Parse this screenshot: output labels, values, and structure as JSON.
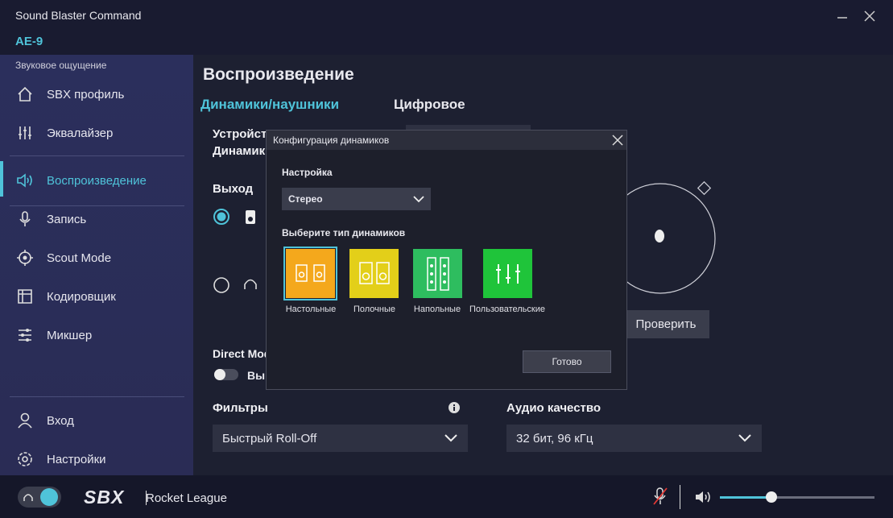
{
  "header": {
    "app_title": "Sound Blaster Command",
    "device": "AE-9"
  },
  "sidebar": {
    "section": "Звуковое ощущение",
    "items": [
      "SBX профиль",
      "Эквалайзер",
      "Воспроизведение",
      "Запись",
      "Scout Mode",
      "Кодировщик",
      "Микшер"
    ],
    "bottom_items": [
      "Вход",
      "Настройки"
    ]
  },
  "main": {
    "title": "Воспроизведение",
    "tabs": [
      "Динамики/наушники",
      "Цифровое"
    ],
    "device_label": "Устройство",
    "device_sub": "Динамики",
    "output_label": "Выход",
    "test_button": "Проверить",
    "direct_mode_label": "Direct Mode",
    "direct_mode_state": "Выключено",
    "filters_label": "Фильтры",
    "filters_value": "Быстрый Roll-Off",
    "quality_label": "Аудио качество",
    "quality_value": "32 бит, 96 кГц"
  },
  "footer": {
    "brand": "SBX",
    "profile": "Rocket League"
  },
  "dialog": {
    "title": "Конфигурация динамиков",
    "setting_label": "Настройка",
    "setting_value": "Стерео",
    "type_label": "Выберите тип динамиков",
    "types": [
      "Настольные",
      "Полочные",
      "Напольные",
      "Пользовательские"
    ],
    "done_button": "Готово"
  }
}
